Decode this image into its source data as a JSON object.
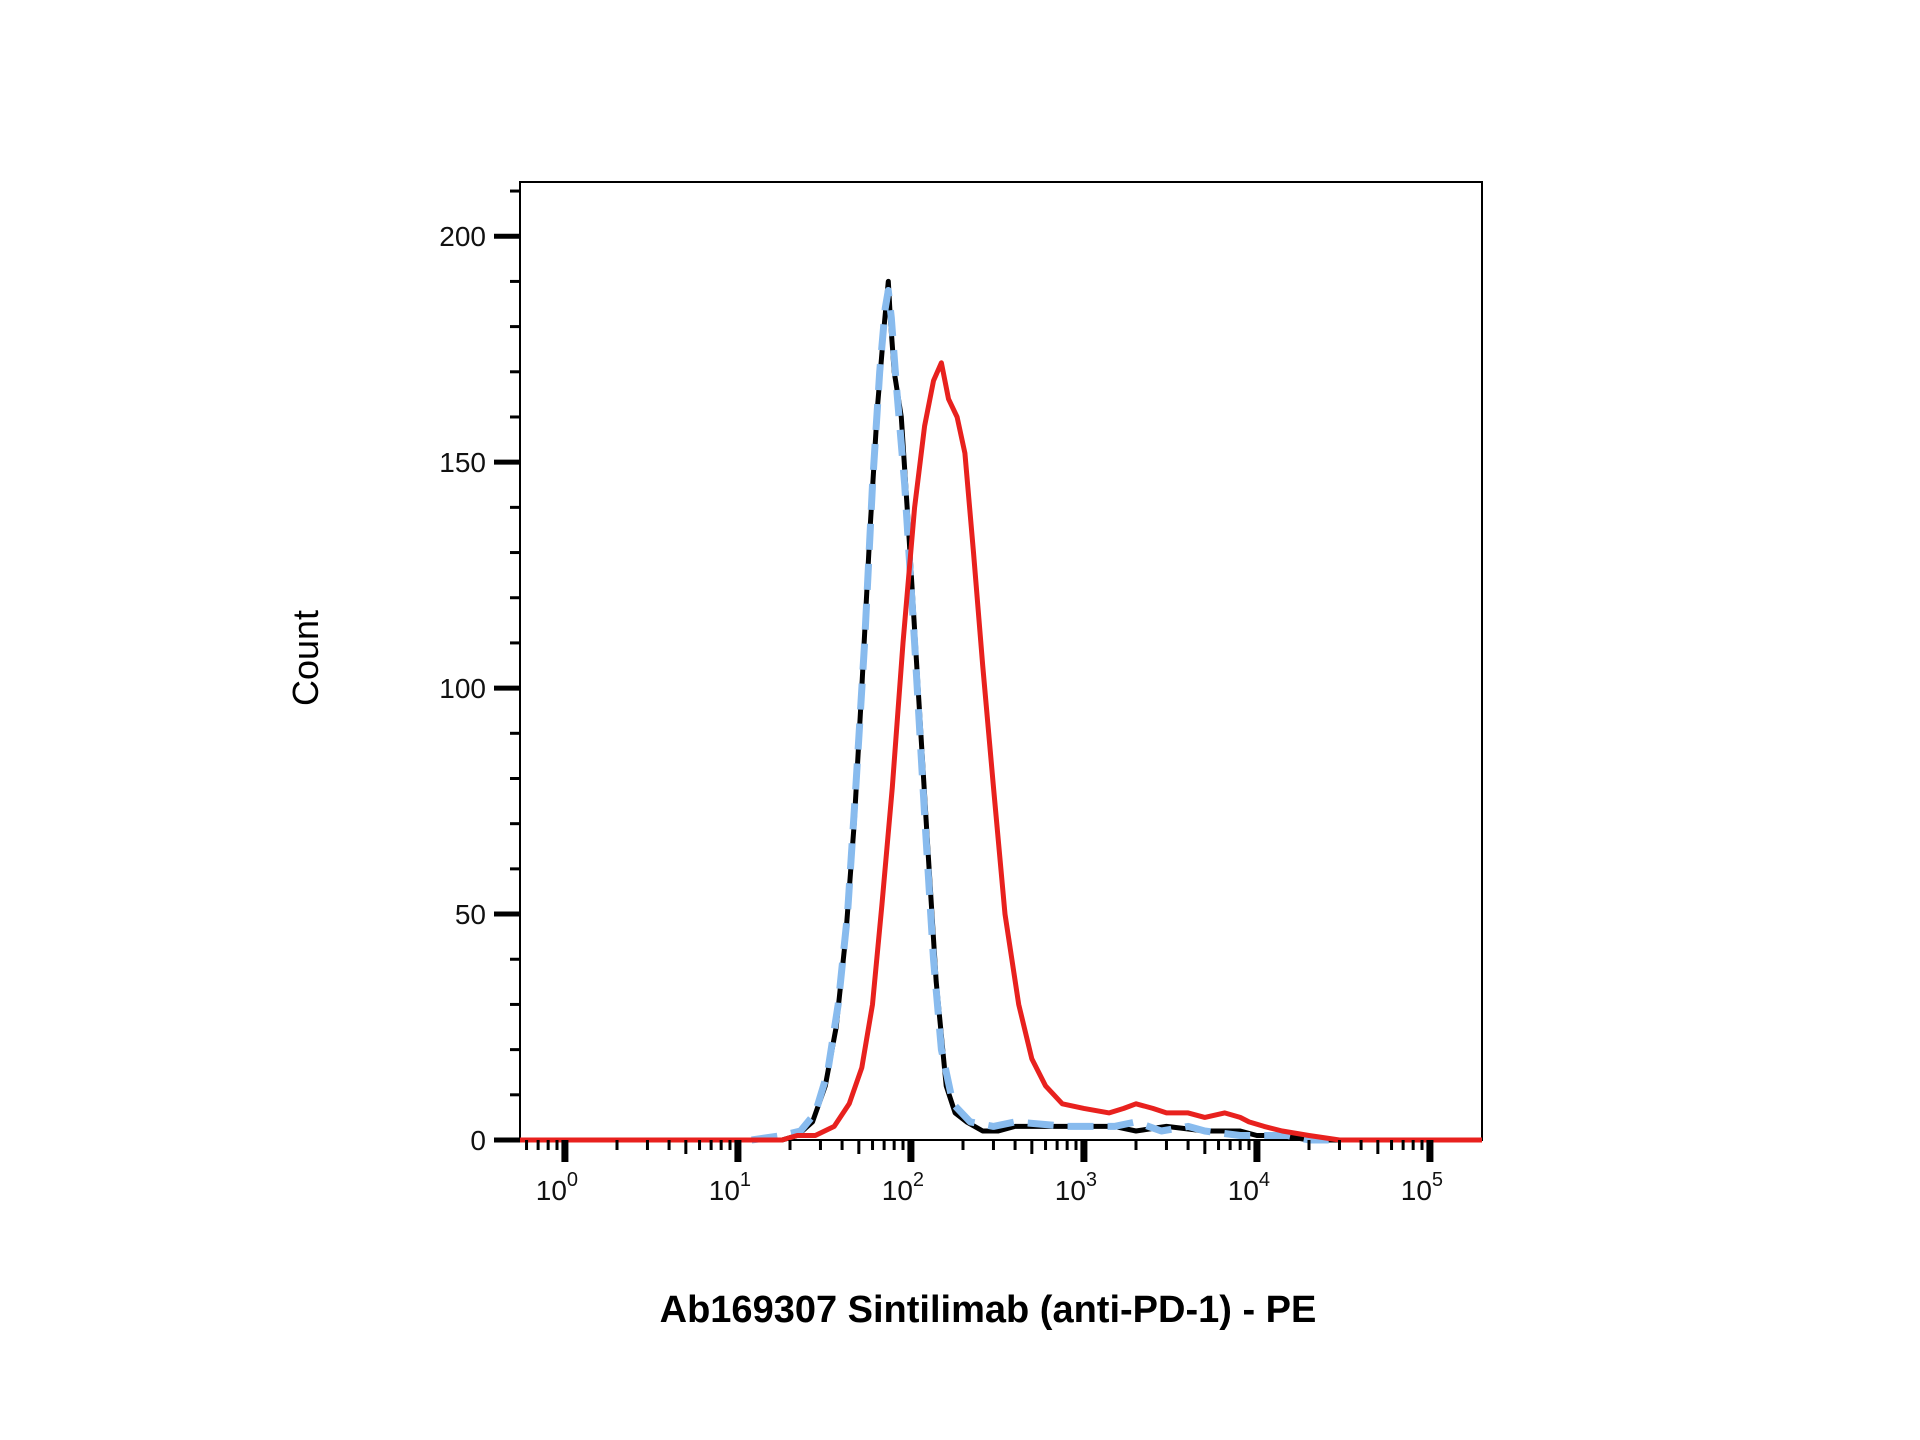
{
  "chart_data": {
    "type": "line",
    "title": "",
    "xlabel": "Ab169307 Sintilimab (anti-PD-1) - PE",
    "ylabel": "Count",
    "x_scale": "log10",
    "xlim": [
      0.55,
      200000
    ],
    "ylim": [
      0,
      212
    ],
    "y_ticks": [
      0,
      50,
      100,
      150,
      200
    ],
    "y_tick_labels": [
      "0",
      "50",
      "100",
      "150",
      "200"
    ],
    "x_ticks": [
      {
        "value": 1,
        "base": "10",
        "exp": "0"
      },
      {
        "value": 10,
        "base": "10",
        "exp": "1"
      },
      {
        "value": 100,
        "base": "10",
        "exp": "2"
      },
      {
        "value": 1000,
        "base": "10",
        "exp": "3"
      },
      {
        "value": 10000,
        "base": "10",
        "exp": "4"
      },
      {
        "value": 100000,
        "base": "10",
        "exp": "5"
      }
    ],
    "grid": false,
    "legend": "none",
    "series": [
      {
        "color": "#000000",
        "style": "solid",
        "points": [
          [
            0.55,
            0
          ],
          [
            10,
            0
          ],
          [
            18,
            0
          ],
          [
            22,
            1
          ],
          [
            27,
            4
          ],
          [
            32,
            12
          ],
          [
            37,
            25
          ],
          [
            42,
            45
          ],
          [
            47,
            70
          ],
          [
            52,
            100
          ],
          [
            58,
            135
          ],
          [
            64,
            162
          ],
          [
            70,
            180
          ],
          [
            74,
            190
          ],
          [
            76,
            182
          ],
          [
            80,
            170
          ],
          [
            88,
            160
          ],
          [
            97,
            135
          ],
          [
            110,
            100
          ],
          [
            125,
            65
          ],
          [
            140,
            35
          ],
          [
            160,
            12
          ],
          [
            180,
            6
          ],
          [
            210,
            4
          ],
          [
            260,
            2
          ],
          [
            320,
            2
          ],
          [
            400,
            3
          ],
          [
            600,
            3
          ],
          [
            1000,
            3
          ],
          [
            1500,
            3
          ],
          [
            2000,
            2
          ],
          [
            3000,
            3
          ],
          [
            5000,
            2
          ],
          [
            8000,
            2
          ],
          [
            10000,
            1
          ],
          [
            14000,
            1
          ],
          [
            20000,
            0
          ],
          [
            200000,
            0
          ]
        ]
      },
      {
        "color": "#88BBEE",
        "style": "dashed",
        "points": [
          [
            12,
            0
          ],
          [
            18,
            1
          ],
          [
            23,
            2
          ],
          [
            28,
            6
          ],
          [
            33,
            15
          ],
          [
            38,
            30
          ],
          [
            43,
            50
          ],
          [
            48,
            78
          ],
          [
            54,
            110
          ],
          [
            60,
            145
          ],
          [
            66,
            170
          ],
          [
            71,
            184
          ],
          [
            74,
            188
          ],
          [
            77,
            182
          ],
          [
            82,
            168
          ],
          [
            92,
            145
          ],
          [
            105,
            110
          ],
          [
            120,
            72
          ],
          [
            135,
            40
          ],
          [
            150,
            20
          ],
          [
            175,
            8
          ],
          [
            220,
            4
          ],
          [
            300,
            3
          ],
          [
            400,
            4
          ],
          [
            800,
            3
          ],
          [
            1500,
            3
          ],
          [
            2000,
            4
          ],
          [
            2800,
            2
          ],
          [
            4000,
            3
          ],
          [
            5000,
            2
          ],
          [
            8000,
            1
          ],
          [
            15000,
            1
          ],
          [
            20000,
            0
          ],
          [
            26000,
            0
          ]
        ]
      },
      {
        "color": "#E8211E",
        "style": "solid",
        "points": [
          [
            0.55,
            0
          ],
          [
            18,
            0
          ],
          [
            22,
            1
          ],
          [
            28,
            1
          ],
          [
            36,
            3
          ],
          [
            44,
            8
          ],
          [
            52,
            16
          ],
          [
            60,
            30
          ],
          [
            68,
            52
          ],
          [
            78,
            78
          ],
          [
            90,
            110
          ],
          [
            105,
            140
          ],
          [
            120,
            158
          ],
          [
            135,
            168
          ],
          [
            150,
            172
          ],
          [
            165,
            164
          ],
          [
            185,
            160
          ],
          [
            205,
            152
          ],
          [
            230,
            130
          ],
          [
            260,
            105
          ],
          [
            300,
            78
          ],
          [
            350,
            50
          ],
          [
            420,
            30
          ],
          [
            500,
            18
          ],
          [
            600,
            12
          ],
          [
            750,
            8
          ],
          [
            1000,
            7
          ],
          [
            1400,
            6
          ],
          [
            1700,
            7
          ],
          [
            2000,
            8
          ],
          [
            2500,
            7
          ],
          [
            3000,
            6
          ],
          [
            4000,
            6
          ],
          [
            5000,
            5
          ],
          [
            6500,
            6
          ],
          [
            8000,
            5
          ],
          [
            9000,
            4
          ],
          [
            11000,
            3
          ],
          [
            14000,
            2
          ],
          [
            20000,
            1
          ],
          [
            30000,
            0
          ],
          [
            200000,
            0
          ]
        ]
      }
    ]
  }
}
